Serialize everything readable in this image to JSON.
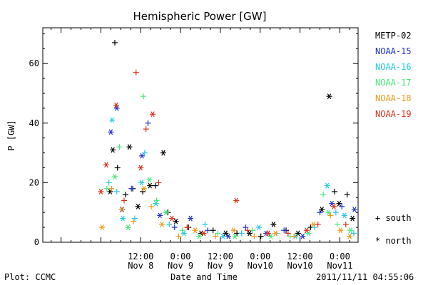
{
  "chart_data": {
    "type": "scatter",
    "title": "Hemispheric Power [GW]",
    "ylabel": "P [GW]",
    "xlabel": "Date and Time",
    "ylim": [
      0,
      72
    ],
    "yticks": [
      0,
      20,
      40,
      60
    ],
    "xlim_hours": [
      -17.5,
      77.5
    ],
    "x_ticks": [
      {
        "hour": 12,
        "time": "12:00",
        "date": "Nov 8"
      },
      {
        "hour": 24,
        "time": "0:00",
        "date": "Nov 9"
      },
      {
        "hour": 36,
        "time": "12:00",
        "date": "Nov 9"
      },
      {
        "hour": 48,
        "time": "0:00",
        "date": "Nov10"
      },
      {
        "hour": 60,
        "time": "12:00",
        "date": "Nov10"
      },
      {
        "hour": 72,
        "time": "0:00",
        "date": "Nov11"
      }
    ],
    "marker_legend": {
      "south": "+ south",
      "north": "* north"
    },
    "series": [
      {
        "name": "METP-02",
        "color": "#000000"
      },
      {
        "name": "NOAA-15",
        "color": "#1f2fd8"
      },
      {
        "name": "NOAA-16",
        "color": "#22c8e8"
      },
      {
        "name": "NOAA-17",
        "color": "#44e87a"
      },
      {
        "name": "NOAA-18",
        "color": "#f09a18"
      },
      {
        "name": "NOAA-19",
        "color": "#e02e1a"
      }
    ],
    "points": [
      [
        0,
        "+",
        4.2,
        67
      ],
      [
        0,
        "*",
        3.6,
        31
      ],
      [
        0,
        "+",
        5.0,
        25
      ],
      [
        0,
        "*",
        2.8,
        17
      ],
      [
        0,
        "+",
        7.4,
        16
      ],
      [
        0,
        "*",
        8.6,
        32
      ],
      [
        0,
        "+",
        9.6,
        18
      ],
      [
        0,
        "*",
        11.2,
        12
      ],
      [
        0,
        "+",
        12.6,
        17
      ],
      [
        0,
        "*",
        14.8,
        19
      ],
      [
        0,
        "+",
        16.4,
        19
      ],
      [
        0,
        "*",
        18.8,
        30
      ],
      [
        0,
        "+",
        20.2,
        10
      ],
      [
        0,
        "*",
        22.6,
        7
      ],
      [
        0,
        "+",
        26.4,
        5
      ],
      [
        0,
        "*",
        30.2,
        3
      ],
      [
        0,
        "+",
        33.8,
        4
      ],
      [
        0,
        "*",
        37.6,
        3
      ],
      [
        0,
        "+",
        41.0,
        3
      ],
      [
        0,
        "*",
        44.8,
        3
      ],
      [
        0,
        "+",
        48.2,
        2
      ],
      [
        0,
        "*",
        52.0,
        6
      ],
      [
        0,
        "+",
        55.8,
        4
      ],
      [
        0,
        "*",
        59.4,
        3
      ],
      [
        0,
        "+",
        63.2,
        5
      ],
      [
        0,
        "*",
        66.6,
        11
      ],
      [
        0,
        "*",
        68.8,
        49
      ],
      [
        0,
        "+",
        70.4,
        17
      ],
      [
        0,
        "*",
        71.8,
        13
      ],
      [
        0,
        "+",
        74.2,
        16
      ],
      [
        0,
        "*",
        75.8,
        8
      ],
      [
        1,
        "*",
        3.0,
        37
      ],
      [
        1,
        "*",
        4.8,
        45
      ],
      [
        1,
        "*",
        6.4,
        11
      ],
      [
        1,
        "+",
        9.2,
        18
      ],
      [
        1,
        "*",
        12.4,
        29
      ],
      [
        1,
        "+",
        14.2,
        40
      ],
      [
        1,
        "*",
        17.8,
        9
      ],
      [
        1,
        "+",
        22.2,
        5
      ],
      [
        1,
        "*",
        27.0,
        8
      ],
      [
        1,
        "+",
        32.2,
        4
      ],
      [
        1,
        "*",
        38.4,
        2
      ],
      [
        1,
        "+",
        43.6,
        5
      ],
      [
        1,
        "*",
        49.8,
        3
      ],
      [
        1,
        "+",
        55.2,
        4
      ],
      [
        1,
        "*",
        60.8,
        2
      ],
      [
        1,
        "+",
        66.0,
        10
      ],
      [
        1,
        "*",
        69.6,
        13
      ],
      [
        1,
        "+",
        72.6,
        12
      ],
      [
        1,
        "*",
        76.4,
        11
      ],
      [
        2,
        "+",
        2.4,
        20
      ],
      [
        2,
        "*",
        3.4,
        41
      ],
      [
        2,
        "+",
        4.8,
        17
      ],
      [
        2,
        "*",
        6.6,
        8
      ],
      [
        2,
        "+",
        10.2,
        8
      ],
      [
        2,
        "*",
        12.2,
        20
      ],
      [
        2,
        "+",
        13.2,
        30
      ],
      [
        2,
        "*",
        16.6,
        13
      ],
      [
        2,
        "+",
        20.6,
        6
      ],
      [
        2,
        "*",
        25.0,
        3
      ],
      [
        2,
        "+",
        31.4,
        6
      ],
      [
        2,
        "*",
        36.8,
        2
      ],
      [
        2,
        "+",
        42.4,
        3
      ],
      [
        2,
        "*",
        47.6,
        5
      ],
      [
        2,
        "+",
        53.0,
        3
      ],
      [
        2,
        "*",
        58.6,
        2
      ],
      [
        2,
        "+",
        64.4,
        5
      ],
      [
        2,
        "*",
        68.2,
        19
      ],
      [
        2,
        "+",
        70.8,
        10
      ],
      [
        2,
        "*",
        73.4,
        9
      ],
      [
        2,
        "+",
        76.2,
        3
      ],
      [
        3,
        "+",
        1.8,
        18
      ],
      [
        3,
        "*",
        4.2,
        22
      ],
      [
        3,
        "+",
        5.6,
        32
      ],
      [
        3,
        "*",
        8.2,
        5
      ],
      [
        3,
        "+",
        12.8,
        49
      ],
      [
        3,
        "*",
        14.6,
        21
      ],
      [
        3,
        "+",
        16.8,
        14
      ],
      [
        3,
        "*",
        19.6,
        10
      ],
      [
        3,
        "+",
        24.6,
        4
      ],
      [
        3,
        "*",
        29.6,
        2
      ],
      [
        3,
        "+",
        35.2,
        3
      ],
      [
        3,
        "*",
        40.4,
        2
      ],
      [
        3,
        "+",
        45.6,
        4
      ],
      [
        3,
        "*",
        51.2,
        2
      ],
      [
        3,
        "+",
        57.0,
        2
      ],
      [
        3,
        "*",
        62.6,
        3
      ],
      [
        3,
        "+",
        67.0,
        16
      ],
      [
        3,
        "*",
        68.6,
        10
      ],
      [
        3,
        "+",
        71.2,
        6
      ],
      [
        3,
        "*",
        75.2,
        4
      ],
      [
        4,
        "*",
        0.4,
        5
      ],
      [
        4,
        "+",
        3.2,
        18
      ],
      [
        4,
        "*",
        6.2,
        11
      ],
      [
        4,
        "+",
        9.8,
        7
      ],
      [
        4,
        "*",
        13.0,
        18
      ],
      [
        4,
        "+",
        15.2,
        12
      ],
      [
        4,
        "*",
        18.4,
        6
      ],
      [
        4,
        "+",
        23.4,
        2
      ],
      [
        4,
        "*",
        28.4,
        4
      ],
      [
        4,
        "+",
        34.6,
        2
      ],
      [
        4,
        "*",
        40.0,
        4
      ],
      [
        4,
        "+",
        46.2,
        2
      ],
      [
        4,
        "*",
        52.6,
        3
      ],
      [
        4,
        "+",
        58.2,
        2
      ],
      [
        4,
        "*",
        64.0,
        6
      ],
      [
        4,
        "+",
        69.2,
        9
      ],
      [
        4,
        "*",
        72.2,
        4
      ],
      [
        4,
        "*",
        75.0,
        2
      ],
      [
        5,
        "*",
        0.0,
        17
      ],
      [
        5,
        "*",
        1.6,
        26
      ],
      [
        5,
        "*",
        4.6,
        46
      ],
      [
        5,
        "+",
        7.0,
        14
      ],
      [
        5,
        "+",
        10.6,
        57
      ],
      [
        5,
        "*",
        12.0,
        25
      ],
      [
        5,
        "+",
        13.6,
        38
      ],
      [
        5,
        "*",
        15.6,
        43
      ],
      [
        5,
        "+",
        17.4,
        20
      ],
      [
        5,
        "*",
        21.4,
        8
      ],
      [
        5,
        "+",
        26.0,
        5
      ],
      [
        5,
        "*",
        31.0,
        3
      ],
      [
        5,
        "*",
        40.8,
        14
      ],
      [
        5,
        "+",
        44.2,
        4
      ],
      [
        5,
        "*",
        50.4,
        3
      ],
      [
        5,
        "+",
        56.4,
        3
      ],
      [
        5,
        "*",
        62.0,
        4
      ],
      [
        5,
        "+",
        65.4,
        6
      ],
      [
        5,
        "*",
        70.2,
        12
      ],
      [
        5,
        "+",
        73.8,
        6
      ]
    ]
  },
  "footer": {
    "left": "Plot: CCMC",
    "center": "Date and Time",
    "right": "2011/11/11 04:55:06"
  }
}
